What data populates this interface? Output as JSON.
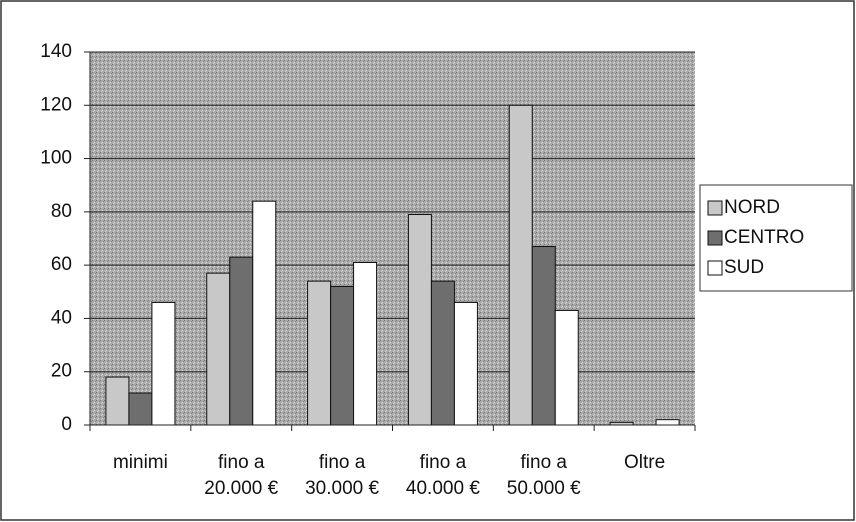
{
  "chart_data": {
    "type": "bar",
    "categories": [
      [
        "minimi"
      ],
      [
        "fino a",
        "20.000 €"
      ],
      [
        "fino a",
        "30.000 €"
      ],
      [
        "fino a",
        "40.000 €"
      ],
      [
        "fino a",
        "50.000 €"
      ],
      [
        "Oltre"
      ]
    ],
    "series": [
      {
        "name": "NORD",
        "color": "#c8c8c8",
        "values": [
          18,
          57,
          54,
          79,
          120,
          1
        ]
      },
      {
        "name": "CENTRO",
        "color": "#6e6e6e",
        "values": [
          12,
          63,
          52,
          54,
          67,
          0
        ]
      },
      {
        "name": "SUD",
        "color": "#ffffff",
        "values": [
          46,
          84,
          61,
          46,
          43,
          2
        ]
      }
    ],
    "ylim": [
      0,
      140
    ],
    "yticks": [
      0,
      20,
      40,
      60,
      80,
      100,
      120,
      140
    ],
    "grid": true,
    "legend": "right"
  }
}
